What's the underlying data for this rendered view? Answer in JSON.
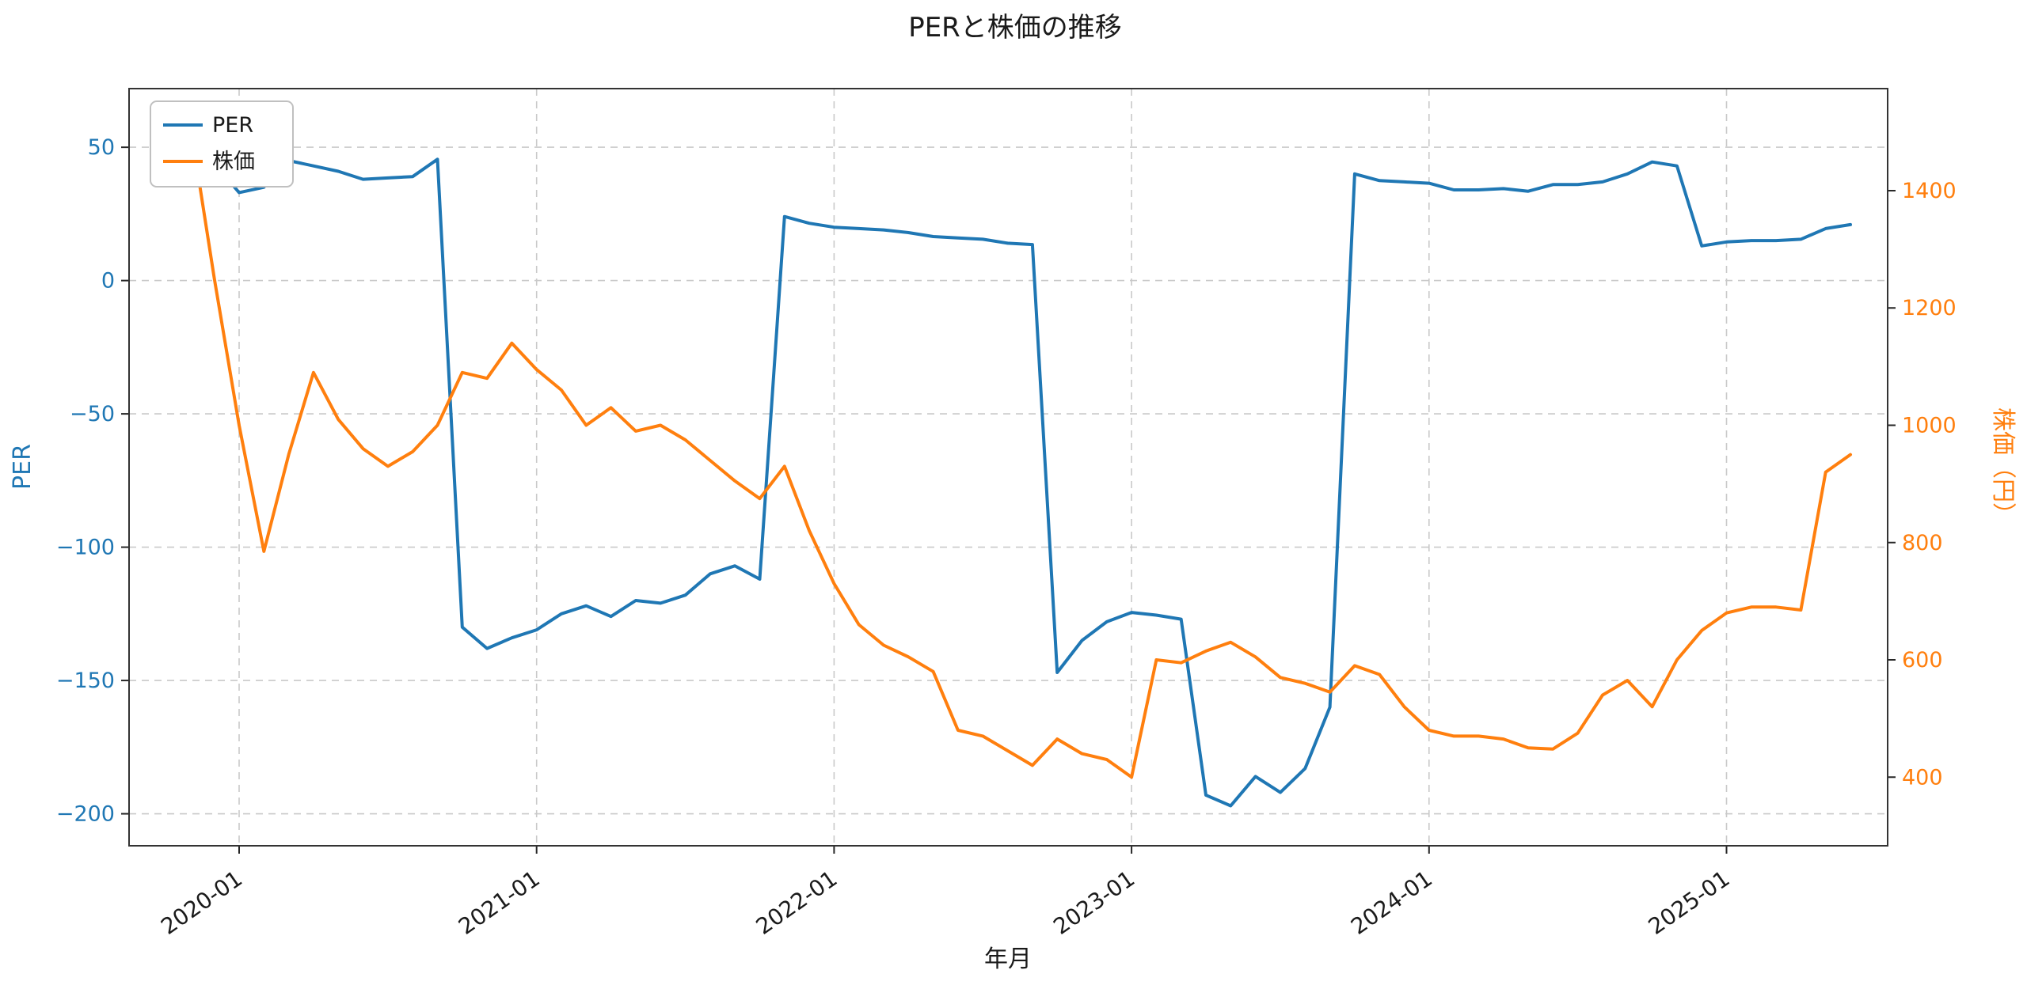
{
  "chart_data": {
    "type": "line",
    "title": "PERと株価の推移",
    "xlabel": "年月",
    "ylabel_left": "PER",
    "ylabel_right": "株価（円）",
    "grid": {
      "on": true,
      "style": "dashed",
      "color": "#c9c9c9"
    },
    "legend": {
      "position": "upper-left",
      "entries": [
        "PER",
        "株価"
      ]
    },
    "x_ticks": [
      "2020-01",
      "2021-01",
      "2022-01",
      "2023-01",
      "2024-01",
      "2025-01"
    ],
    "x_months": [
      "2019-11",
      "2019-12",
      "2020-01",
      "2020-02",
      "2020-03",
      "2020-04",
      "2020-05",
      "2020-06",
      "2020-07",
      "2020-08",
      "2020-09",
      "2020-10",
      "2020-11",
      "2020-12",
      "2021-01",
      "2021-02",
      "2021-03",
      "2021-04",
      "2021-05",
      "2021-06",
      "2021-07",
      "2021-08",
      "2021-09",
      "2021-10",
      "2021-11",
      "2021-12",
      "2022-01",
      "2022-02",
      "2022-03",
      "2022-04",
      "2022-05",
      "2022-06",
      "2022-07",
      "2022-08",
      "2022-09",
      "2022-10",
      "2022-11",
      "2022-12",
      "2023-01",
      "2023-02",
      "2023-03",
      "2023-04",
      "2023-05",
      "2023-06",
      "2023-07",
      "2023-08",
      "2023-09",
      "2023-10",
      "2023-11",
      "2023-12",
      "2024-01",
      "2024-02",
      "2024-03",
      "2024-04",
      "2024-05",
      "2024-06",
      "2024-07",
      "2024-08",
      "2024-09",
      "2024-10",
      "2024-11",
      "2024-12",
      "2025-01",
      "2025-02",
      "2025-03",
      "2025-04",
      "2025-05",
      "2025-06"
    ],
    "left_axis": {
      "color": "#1f77b4",
      "range": [
        -212,
        72
      ],
      "ticks": [
        {
          "value": 50,
          "label": "50"
        },
        {
          "value": 0,
          "label": "0"
        },
        {
          "value": -50,
          "label": "−50"
        },
        {
          "value": -100,
          "label": "−100"
        },
        {
          "value": -150,
          "label": "−150"
        },
        {
          "value": -200,
          "label": "−200"
        }
      ]
    },
    "right_axis": {
      "color": "#ff7f0e",
      "range": [
        283,
        1574
      ],
      "ticks": [
        {
          "value": 1400,
          "label": "1400"
        },
        {
          "value": 1200,
          "label": "1200"
        },
        {
          "value": 1000,
          "label": "1000"
        },
        {
          "value": 800,
          "label": "800"
        },
        {
          "value": 600,
          "label": "600"
        },
        {
          "value": 400,
          "label": "400"
        }
      ]
    },
    "series": [
      {
        "name": "PER",
        "axis": "left",
        "color": "#1f77b4",
        "values": [
          58,
          44,
          33,
          35,
          45,
          43,
          41,
          38,
          38.5,
          39,
          45.5,
          -130,
          -138,
          -134,
          -131,
          -125,
          -122,
          -126,
          -120,
          -121,
          -118,
          -110,
          -107,
          -112,
          24,
          21.5,
          20,
          19.5,
          19,
          18,
          16.5,
          16,
          15.5,
          14,
          13.5,
          -147,
          -135,
          -128,
          -124.5,
          -125.5,
          -127,
          -193,
          -197,
          -186,
          -192,
          -183,
          -160,
          40,
          37.5,
          37,
          36.5,
          34,
          34,
          34.5,
          33.5,
          36,
          36,
          37,
          40,
          44.5,
          43,
          13,
          14.5,
          15,
          15,
          15.5,
          19.5,
          21
        ]
      },
      {
        "name": "株価",
        "axis": "right",
        "color": "#ff7f0e",
        "values": [
          1520,
          1250,
          1000,
          785,
          950,
          1090,
          1010,
          960,
          930,
          955,
          1000,
          1090,
          1080,
          1140,
          1095,
          1060,
          1000,
          1030,
          990,
          1000,
          975,
          940,
          905,
          875,
          930,
          820,
          730,
          660,
          625,
          605,
          580,
          480,
          470,
          445,
          420,
          465,
          440,
          430,
          400,
          600,
          595,
          615,
          630,
          605,
          570,
          560,
          545,
          590,
          575,
          520,
          480,
          470,
          470,
          465,
          450,
          448,
          475,
          540,
          565,
          520,
          600,
          650,
          680,
          690,
          690,
          685,
          920,
          950
        ]
      }
    ]
  }
}
